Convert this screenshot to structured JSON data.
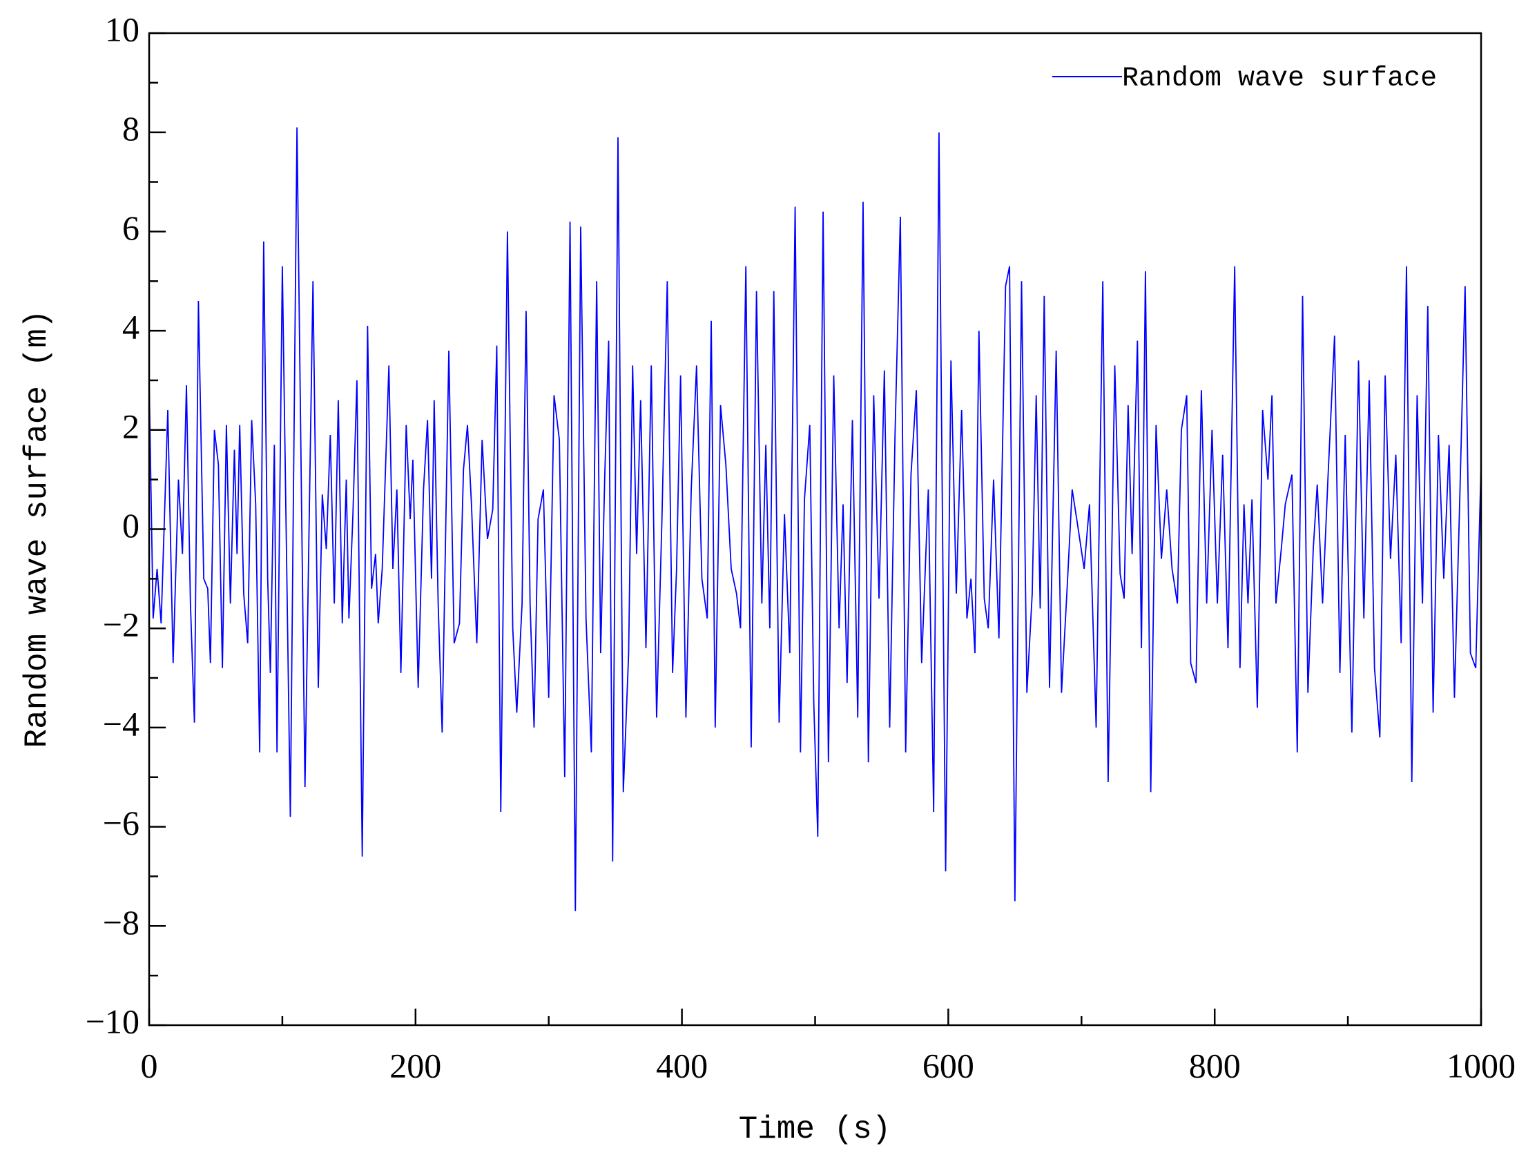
{
  "chart_data": {
    "type": "line",
    "xlabel": "Time (s)",
    "ylabel": "Random wave surface (m)",
    "legend": "upper right",
    "xlim": [
      0,
      1000
    ],
    "xticks": [
      0,
      200,
      400,
      600,
      800,
      1000
    ],
    "xminorticks": [
      100,
      300,
      500,
      700,
      900
    ],
    "ylim": [
      -10,
      10
    ],
    "yticks": [
      {
        "value": -10,
        "label": "−10"
      },
      {
        "value": -8,
        "label": "−8"
      },
      {
        "value": -6,
        "label": "−6"
      },
      {
        "value": -4,
        "label": "−4"
      },
      {
        "value": -2,
        "label": "−2"
      },
      0,
      2,
      4,
      6,
      8,
      10
    ],
    "yminorticks": [
      -9,
      -7,
      -5,
      -3,
      -1,
      1,
      3,
      5,
      7,
      9
    ],
    "x": [
      0,
      3,
      6,
      9,
      14,
      18,
      22,
      25,
      28,
      31,
      34,
      37,
      41,
      44,
      46,
      49,
      52,
      55,
      58,
      61,
      64,
      66,
      68,
      71,
      74,
      77,
      80,
      83,
      86,
      89,
      91,
      94,
      96,
      100,
      106,
      111,
      117,
      123,
      127,
      130,
      133,
      136,
      139,
      142,
      145,
      148,
      150,
      153,
      156,
      160,
      164,
      167,
      170,
      172,
      175,
      180,
      183,
      186,
      189,
      193,
      196,
      198,
      202,
      206,
      209,
      212,
      214,
      217,
      220,
      225,
      229,
      233,
      236,
      239,
      242,
      246,
      250,
      254,
      258,
      261,
      264,
      269,
      273,
      276,
      280,
      283,
      286,
      289,
      292,
      296,
      300,
      304,
      308,
      312,
      316,
      320,
      324,
      328,
      332,
      336,
      339,
      342,
      345,
      348,
      352,
      356,
      360,
      363,
      366,
      369,
      373,
      377,
      381,
      385,
      389,
      393,
      396,
      399,
      403,
      407,
      411,
      415,
      419,
      422,
      425,
      429,
      433,
      437,
      441,
      444,
      448,
      452,
      456,
      460,
      463,
      466,
      469,
      473,
      477,
      481,
      485,
      489,
      492,
      496,
      499,
      502,
      506,
      510,
      514,
      518,
      521,
      524,
      528,
      532,
      536,
      540,
      544,
      548,
      552,
      556,
      560,
      564,
      568,
      572,
      576,
      580,
      585,
      589,
      593,
      598,
      602,
      606,
      610,
      614,
      617,
      620,
      623,
      627,
      630,
      634,
      638,
      643,
      646,
      650,
      655,
      659,
      663,
      666,
      669,
      672,
      676,
      681,
      685,
      689,
      693,
      697,
      702,
      706,
      711,
      716,
      720,
      725,
      729,
      732,
      735,
      738,
      742,
      745,
      748,
      752,
      756,
      760,
      764,
      768,
      772,
      775,
      779,
      782,
      786,
      790,
      794,
      798,
      802,
      806,
      810,
      815,
      819,
      822,
      825,
      828,
      832,
      836,
      840,
      843,
      846,
      850,
      853,
      858,
      862,
      866,
      870,
      874,
      877,
      881,
      885,
      890,
      894,
      898,
      903,
      908,
      912,
      916,
      920,
      924,
      928,
      932,
      936,
      940,
      944,
      948,
      952,
      956,
      960,
      964,
      968,
      972,
      976,
      980,
      984,
      988,
      992,
      996,
      1000
    ],
    "series": [
      {
        "name": "Random wave surface",
        "color": "#0000ff",
        "values": [
          3,
          -1.8,
          -0.8,
          -1.9,
          2.4,
          -2.7,
          1.0,
          -0.5,
          2.9,
          -1.5,
          -3.9,
          4.6,
          -1.0,
          -1.2,
          -2.7,
          2.0,
          1.3,
          -2.8,
          2.1,
          -1.5,
          1.6,
          -0.5,
          2.1,
          -1.3,
          -2.3,
          2.2,
          0.5,
          -4.5,
          5.8,
          -1.0,
          -2.9,
          1.7,
          -4.5,
          5.3,
          -5.8,
          8.1,
          -5.2,
          5.0,
          -3.2,
          0.7,
          -0.4,
          1.9,
          -1.5,
          2.6,
          -1.9,
          1.0,
          -1.8,
          0.3,
          3.0,
          -6.6,
          4.1,
          -1.2,
          -0.5,
          -1.9,
          -0.8,
          3.3,
          -0.8,
          0.8,
          -2.9,
          2.1,
          0.2,
          1.4,
          -3.2,
          0.8,
          2.2,
          -1.0,
          2.6,
          -1.5,
          -4.1,
          3.6,
          -2.3,
          -1.9,
          1.2,
          2.1,
          0.5,
          -2.3,
          1.8,
          -0.2,
          0.4,
          3.7,
          -5.7,
          6.0,
          -2.0,
          -3.7,
          -1.5,
          4.4,
          -1.5,
          -4.0,
          0.2,
          0.8,
          -3.4,
          2.7,
          1.8,
          -5.0,
          6.2,
          -7.7,
          6.1,
          -1.8,
          -4.5,
          5.0,
          -2.5,
          1.0,
          3.8,
          -6.7,
          7.9,
          -5.3,
          -2.5,
          3.3,
          -0.5,
          2.6,
          -2.4,
          3.3,
          -3.8,
          0.2,
          5.0,
          -2.9,
          -0.8,
          3.1,
          -3.8,
          0.8,
          3.3,
          -1.0,
          -1.8,
          4.2,
          -4.0,
          2.5,
          1.3,
          -0.8,
          -1.3,
          -2.0,
          5.3,
          -4.4,
          4.8,
          -1.5,
          1.7,
          -2.0,
          4.8,
          -3.9,
          0.3,
          -2.5,
          6.5,
          -4.5,
          0.6,
          2.1,
          -3.5,
          -6.2,
          6.4,
          -4.7,
          3.1,
          -2.0,
          0.5,
          -3.1,
          2.2,
          -3.8,
          6.6,
          -4.7,
          2.7,
          -1.4,
          3.2,
          -4.0,
          1.9,
          6.3,
          -4.5,
          1.1,
          2.8,
          -2.7,
          0.8,
          -5.7,
          8.0,
          -6.9,
          3.4,
          -1.3,
          2.4,
          -1.8,
          -1.0,
          -2.5,
          4.0,
          -1.4,
          -2.0,
          1.0,
          -2.2,
          4.9,
          5.3,
          -7.5,
          5.0,
          -3.3,
          -1.3,
          2.7,
          -1.6,
          4.7,
          -3.2,
          3.6,
          -3.3,
          -1.3,
          0.8,
          0.1,
          -0.8,
          0.5,
          -4.0,
          5.0,
          -5.1,
          3.3,
          -0.9,
          -1.4,
          2.5,
          -0.5,
          3.8,
          -2.4,
          5.2,
          -5.3,
          2.1,
          -0.6,
          0.8,
          -0.8,
          -1.5,
          2.0,
          2.7,
          -2.7,
          -3.1,
          2.8,
          -1.5,
          2.0,
          -1.5,
          1.5,
          -2.4,
          5.3,
          -2.8,
          0.5,
          -1.5,
          0.6,
          -3.6,
          2.4,
          1.0,
          2.7,
          -1.5,
          -0.4,
          0.5,
          1.1,
          -4.5,
          4.7,
          -3.3,
          -0.4,
          0.9,
          -1.5,
          1.0,
          3.9,
          -2.9,
          1.9,
          -4.1,
          3.4,
          -1.8,
          3.0,
          -2.8,
          -4.2,
          3.1,
          -0.6,
          1.5,
          -2.3,
          5.3,
          -5.1,
          2.7,
          -1.5,
          4.5,
          -3.7,
          1.9,
          -1.0,
          1.7,
          -3.4,
          0.6,
          4.9,
          -2.5,
          -2.8,
          1.3
        ]
      }
    ]
  }
}
